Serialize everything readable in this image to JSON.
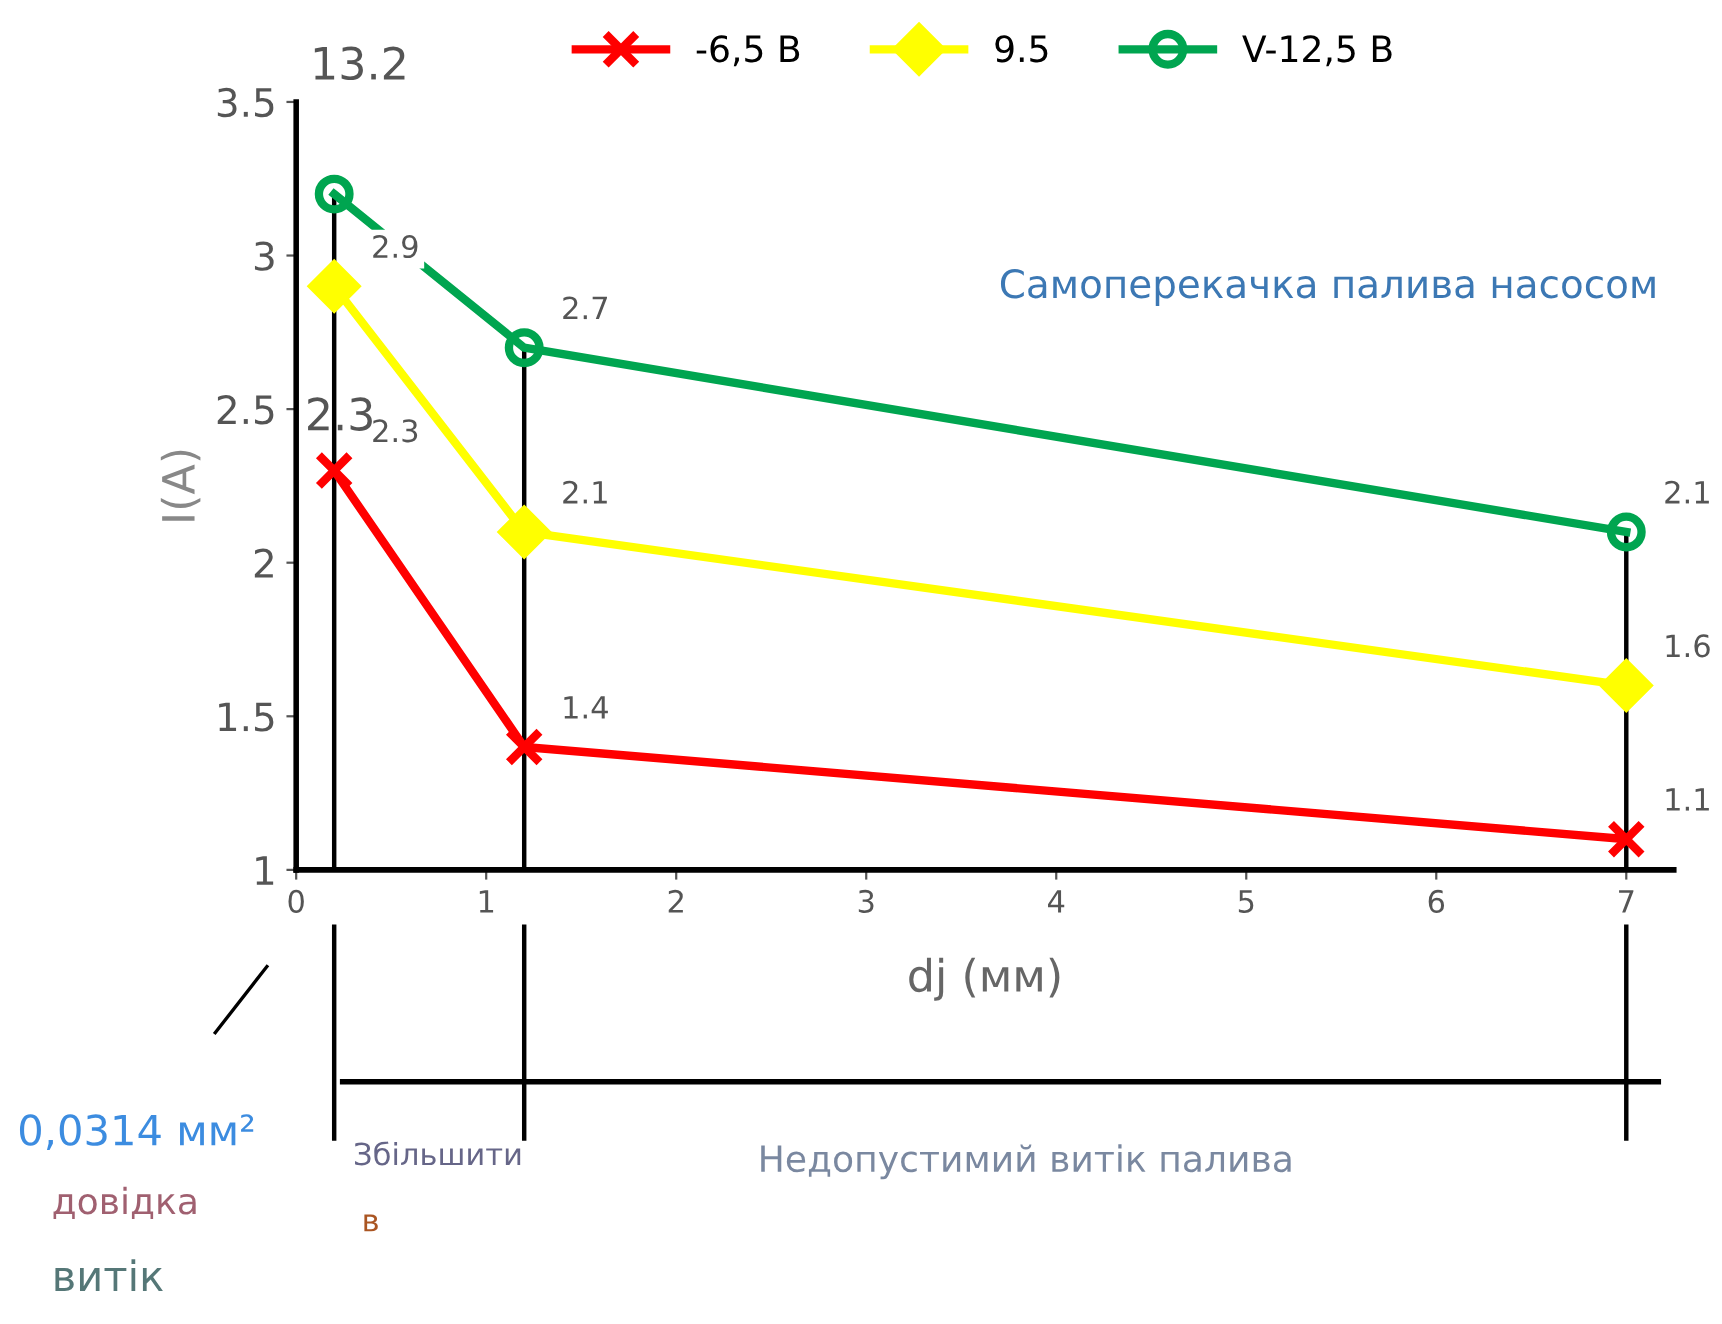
{
  "chart_data": {
    "type": "line",
    "xlabel": "dj (мм)",
    "ylabel": "I(A)",
    "xlim": [
      0,
      7.25
    ],
    "ylim": [
      1,
      3.5
    ],
    "xticks": [
      0,
      1,
      2,
      3,
      4,
      5,
      6,
      7
    ],
    "yticks": [
      1,
      1.5,
      2,
      2.5,
      3,
      3.5
    ],
    "grid": false,
    "legend": "top",
    "line_style": "solid",
    "series": [
      {
        "name": "-6,5 В",
        "color": "#ff0000",
        "marker": "cross",
        "x": [
          0.2,
          1.2,
          7
        ],
        "values": [
          2.3,
          1.4,
          1.1
        ],
        "value_labels": [
          "2.3",
          "1.4",
          "1.1"
        ]
      },
      {
        "name": "9.5",
        "color": "#ffff00",
        "marker": "diamond",
        "x": [
          0.2,
          1.2,
          7
        ],
        "values": [
          2.9,
          2.1,
          1.6
        ],
        "value_labels": [
          "2.9",
          "2.1",
          "1.6"
        ]
      },
      {
        "name": "V-12,5 В",
        "color": "#00a550",
        "marker": "circle",
        "x": [
          0.2,
          1.2,
          7
        ],
        "values": [
          3.2,
          2.7,
          2.1
        ],
        "value_labels": [
          null,
          "2.7",
          "2.1"
        ]
      }
    ],
    "ref_lines": [
      {
        "axis": "x",
        "value": 0.2,
        "color": "#000000"
      },
      {
        "axis": "x",
        "value": 1.2,
        "color": "#000000"
      },
      {
        "axis": "x",
        "value": 7,
        "color": "#000000"
      }
    ],
    "annotations": [
      "13.2",
      "2.3",
      "Самоперекачка палива насосом",
      "0,0314 мм²",
      "довідка",
      "витік",
      "Збільшити",
      "в",
      "Недопустимий витік палива"
    ]
  }
}
